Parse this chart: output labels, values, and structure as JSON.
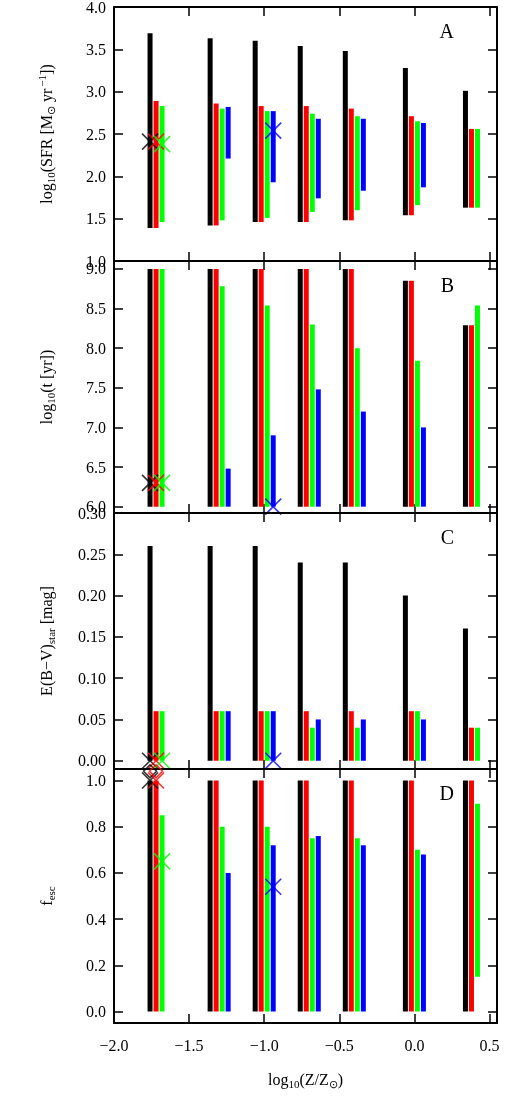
{
  "chart_data": [
    {
      "type": "bar",
      "ylabel": "log$_{10}$(SFR [M$_{⊙}$ yr$^{−1}$])",
      "annotations": [
        "A"
      ],
      "xlim": [
        -2,
        0.55
      ],
      "xticks": [
        -2,
        -1.5,
        -1,
        -0.5,
        0,
        0.5
      ],
      "ylim": [
        1,
        4
      ],
      "yticks": [
        {
          "value": 1,
          "label": "1.0"
        },
        1.5,
        {
          "value": 2,
          "label": "2.0"
        },
        2.5,
        {
          "value": 3,
          "label": "3.0"
        },
        3.5,
        {
          "value": 4,
          "label": "4.0"
        }
      ],
      "tick_labels": "y",
      "series": [
        {
          "color": "#000000",
          "x": [
            -1.76,
            -1.36,
            -1.06,
            -0.76,
            -0.46,
            -0.06,
            0.34
          ],
          "base": [
            1.39,
            1.42,
            1.46,
            1.46,
            1.48,
            1.54,
            1.63
          ],
          "values": [
            2.3,
            2.21,
            2.14,
            2.08,
            2.0,
            1.74,
            1.38
          ]
        },
        {
          "color": "#ff0000",
          "x": [
            -1.72,
            -1.32,
            -1.02,
            -0.72,
            -0.42,
            -0.02,
            0.38
          ],
          "base": [
            1.39,
            1.42,
            1.46,
            1.46,
            1.48,
            1.54,
            1.63
          ],
          "values": [
            1.5,
            1.44,
            1.37,
            1.37,
            1.32,
            1.17,
            0.93
          ]
        },
        {
          "color": "#00ff00",
          "x": [
            -1.68,
            -1.28,
            -0.98,
            -0.68,
            -0.38,
            0.02,
            0.42
          ],
          "base": [
            1.46,
            1.48,
            1.51,
            1.58,
            1.6,
            1.66,
            1.63
          ],
          "values": [
            1.37,
            1.32,
            1.26,
            1.16,
            1.11,
            0.99,
            0.93
          ]
        },
        {
          "color": "#0000ff",
          "x": [
            -1.24,
            -0.94,
            -0.64,
            -0.34,
            0.06
          ],
          "base": [
            2.21,
            1.93,
            1.74,
            1.83,
            1.87
          ],
          "values": [
            0.61,
            0.84,
            0.94,
            0.85,
            0.76
          ]
        },
        {
          "type": "scatter",
          "marker": "cross",
          "color": "#000000",
          "x": [
            -1.76
          ],
          "values": [
            2.41
          ]
        },
        {
          "type": "scatter",
          "marker": "cross",
          "color": "#ff0000",
          "x": [
            -1.72
          ],
          "values": [
            2.41
          ]
        },
        {
          "type": "scatter",
          "marker": "cross",
          "color": "#00ff00",
          "x": [
            -1.68
          ],
          "values": [
            2.38
          ]
        },
        {
          "type": "scatter",
          "marker": "cross",
          "color": "#0000ff",
          "x": [
            -0.94
          ],
          "values": [
            2.54
          ]
        }
      ]
    },
    {
      "type": "bar",
      "ylabel": "log$_{10}$(t [yr])",
      "annotations": [
        "B"
      ],
      "xlim": [
        -2,
        0.55
      ],
      "xticks": [
        -2,
        -1.5,
        -1,
        -0.5,
        0,
        0.5
      ],
      "ylim": [
        5.92,
        9.1
      ],
      "yticks": [
        {
          "value": 6,
          "label": "6.0"
        },
        6.5,
        {
          "value": 7,
          "label": "7.0"
        },
        7.5,
        {
          "value": 8,
          "label": "8.0"
        },
        8.5,
        {
          "value": 9,
          "label": "9.0"
        }
      ],
      "tick_labels": "y",
      "series": [
        {
          "color": "#000000",
          "x": [
            -1.76,
            -1.36,
            -1.06,
            -0.76,
            -0.46,
            -0.06,
            0.34
          ],
          "base": [
            6,
            6,
            6,
            6,
            6,
            6,
            6
          ],
          "values": [
            3.0,
            3.0,
            3.0,
            3.0,
            3.0,
            2.85,
            2.29
          ]
        },
        {
          "color": "#ff0000",
          "x": [
            -1.72,
            -1.32,
            -1.02,
            -0.72,
            -0.42,
            -0.02,
            0.38
          ],
          "base": [
            6,
            6,
            6,
            6,
            6,
            6,
            6
          ],
          "values": [
            3.0,
            3.0,
            3.0,
            3.0,
            3.0,
            2.85,
            2.29
          ]
        },
        {
          "color": "#00ff00",
          "x": [
            -1.68,
            -1.28,
            -0.98,
            -0.68,
            -0.38,
            0.02,
            0.42
          ],
          "base": [
            6,
            6,
            6,
            6,
            6,
            6,
            6
          ],
          "values": [
            3.0,
            2.78,
            2.54,
            2.3,
            2.0,
            1.84,
            2.54
          ]
        },
        {
          "color": "#0000ff",
          "x": [
            -1.24,
            -0.94,
            -0.64,
            -0.34,
            0.06
          ],
          "base": [
            6,
            6,
            6,
            6,
            6
          ],
          "values": [
            0.48,
            0.9,
            1.48,
            1.2,
            1.0
          ]
        },
        {
          "type": "scatter",
          "marker": "cross",
          "color": "#000000",
          "x": [
            -1.76
          ],
          "values": [
            6.3
          ]
        },
        {
          "type": "scatter",
          "marker": "cross",
          "color": "#ff0000",
          "x": [
            -1.72
          ],
          "values": [
            6.3
          ]
        },
        {
          "type": "scatter",
          "marker": "cross",
          "color": "#00ff00",
          "x": [
            -1.68
          ],
          "values": [
            6.3
          ]
        },
        {
          "type": "scatter",
          "marker": "cross",
          "color": "#0000ff",
          "x": [
            -0.94
          ],
          "values": [
            6.0
          ]
        }
      ]
    },
    {
      "type": "bar",
      "ylabel": "E(B−V)$_{star}$ [mag]",
      "annotations": [
        "C"
      ],
      "xlim": [
        -2,
        0.55
      ],
      "xticks": [
        -2,
        -1.5,
        -1,
        -0.5,
        0,
        0.5
      ],
      "ylim": [
        -0.01,
        0.3
      ],
      "yticks": [
        {
          "value": 0,
          "label": "0.00"
        },
        {
          "value": 0.05,
          "label": "0.05"
        },
        {
          "value": 0.1,
          "label": "0.10"
        },
        {
          "value": 0.15,
          "label": "0.15"
        },
        {
          "value": 0.2,
          "label": "0.20"
        },
        {
          "value": 0.25,
          "label": "0.25"
        },
        {
          "value": 0.3,
          "label": "0.30"
        }
      ],
      "tick_labels": "y",
      "series": [
        {
          "color": "#000000",
          "x": [
            -1.76,
            -1.36,
            -1.06,
            -0.76,
            -0.46,
            -0.06,
            0.34
          ],
          "base": [
            0,
            0,
            0,
            0,
            0,
            0,
            0
          ],
          "values": [
            0.26,
            0.26,
            0.26,
            0.24,
            0.24,
            0.2,
            0.16
          ]
        },
        {
          "color": "#ff0000",
          "x": [
            -1.72,
            -1.32,
            -1.02,
            -0.72,
            -0.42,
            -0.02,
            0.38
          ],
          "base": [
            0,
            0,
            0,
            0,
            0,
            0,
            0
          ],
          "values": [
            0.06,
            0.06,
            0.06,
            0.06,
            0.06,
            0.06,
            0.04
          ]
        },
        {
          "color": "#00ff00",
          "x": [
            -1.68,
            -1.28,
            -0.98,
            -0.68,
            -0.38,
            0.02,
            0.42
          ],
          "base": [
            0,
            0,
            0,
            0,
            0,
            0,
            0
          ],
          "values": [
            0.06,
            0.06,
            0.06,
            0.04,
            0.04,
            0.06,
            0.04
          ]
        },
        {
          "color": "#0000ff",
          "x": [
            -1.24,
            -0.94,
            -0.64,
            -0.34,
            0.06
          ],
          "base": [
            0,
            0,
            0,
            0,
            0
          ],
          "values": [
            0.06,
            0.06,
            0.05,
            0.05,
            0.05
          ]
        },
        {
          "type": "scatter",
          "marker": "cross",
          "color": "#000000",
          "x": [
            -1.76
          ],
          "values": [
            0
          ]
        },
        {
          "type": "scatter",
          "marker": "cross",
          "color": "#ff0000",
          "x": [
            -1.72
          ],
          "values": [
            0
          ]
        },
        {
          "type": "scatter",
          "marker": "cross",
          "color": "#00ff00",
          "x": [
            -1.68
          ],
          "values": [
            0
          ]
        },
        {
          "type": "scatter",
          "marker": "cross",
          "color": "#0000ff",
          "x": [
            -0.94
          ],
          "values": [
            0
          ]
        }
      ]
    },
    {
      "type": "bar",
      "ylabel": "f$_{esc}$",
      "xlabel": "log$_{10}$(Z/Z$_{⊙}$)",
      "annotations": [
        "D"
      ],
      "xlim": [
        -2,
        0.55
      ],
      "xticks": [
        {
          "value": -2,
          "label": "−2.0"
        },
        {
          "value": -1.5,
          "label": "−1.5"
        },
        {
          "value": -1,
          "label": "−1.0"
        },
        {
          "value": -0.5,
          "label": "−0.5"
        },
        {
          "value": 0,
          "label": "0.0"
        },
        0.5
      ],
      "ylim": [
        -0.05,
        1.05
      ],
      "yticks": [
        {
          "value": 0,
          "label": "0.0"
        },
        0.2,
        0.4,
        0.6,
        0.8,
        {
          "value": 1,
          "label": "1.0"
        }
      ],
      "series": [
        {
          "color": "#000000",
          "x": [
            -1.76,
            -1.36,
            -1.06,
            -0.76,
            -0.46,
            -0.06,
            0.34
          ],
          "base": [
            0,
            0,
            0,
            0,
            0,
            0,
            0
          ],
          "values": [
            1,
            1,
            1,
            1,
            1,
            1,
            1
          ]
        },
        {
          "color": "#ff0000",
          "x": [
            -1.72,
            -1.32,
            -1.02,
            -0.72,
            -0.42,
            -0.02,
            0.38
          ],
          "base": [
            0,
            0,
            0,
            0,
            0,
            0,
            0
          ],
          "values": [
            1,
            1,
            1,
            1,
            1,
            1,
            1
          ]
        },
        {
          "color": "#00ff00",
          "x": [
            -1.68,
            -1.28,
            -0.98,
            -0.68,
            -0.38,
            0.02,
            0.42
          ],
          "base": [
            0,
            0,
            0,
            0,
            0,
            0,
            0.15
          ],
          "values": [
            0.85,
            0.8,
            0.8,
            0.75,
            0.75,
            0.7,
            0.75
          ]
        },
        {
          "color": "#0000ff",
          "x": [
            -1.24,
            -0.94,
            -0.64,
            -0.34,
            0.06
          ],
          "base": [
            0,
            0,
            0,
            0,
            0
          ],
          "values": [
            0.6,
            0.72,
            0.76,
            0.72,
            0.68
          ]
        },
        {
          "type": "scatter",
          "marker": "cross",
          "color": "#000000",
          "x": [
            -1.76
          ],
          "values": [
            1.0
          ]
        },
        {
          "type": "scatter",
          "marker": "cross",
          "color": "#ff0000",
          "x": [
            -1.72
          ],
          "values": [
            1.0
          ]
        },
        {
          "type": "scatter",
          "marker": "cross",
          "color": "#00ff00",
          "x": [
            -1.68
          ],
          "values": [
            0.65
          ]
        },
        {
          "type": "scatter",
          "marker": "cross",
          "color": "#0000ff",
          "x": [
            -0.94
          ],
          "values": [
            0.54
          ]
        },
        {
          "type": "scatter",
          "marker": "diamond",
          "color": "#000000",
          "x": [
            -1.76
          ],
          "values": [
            1.04
          ]
        },
        {
          "type": "scatter",
          "marker": "diamond",
          "color": "#ff0000",
          "x": [
            -1.72
          ],
          "values": [
            1.04
          ]
        }
      ]
    }
  ]
}
